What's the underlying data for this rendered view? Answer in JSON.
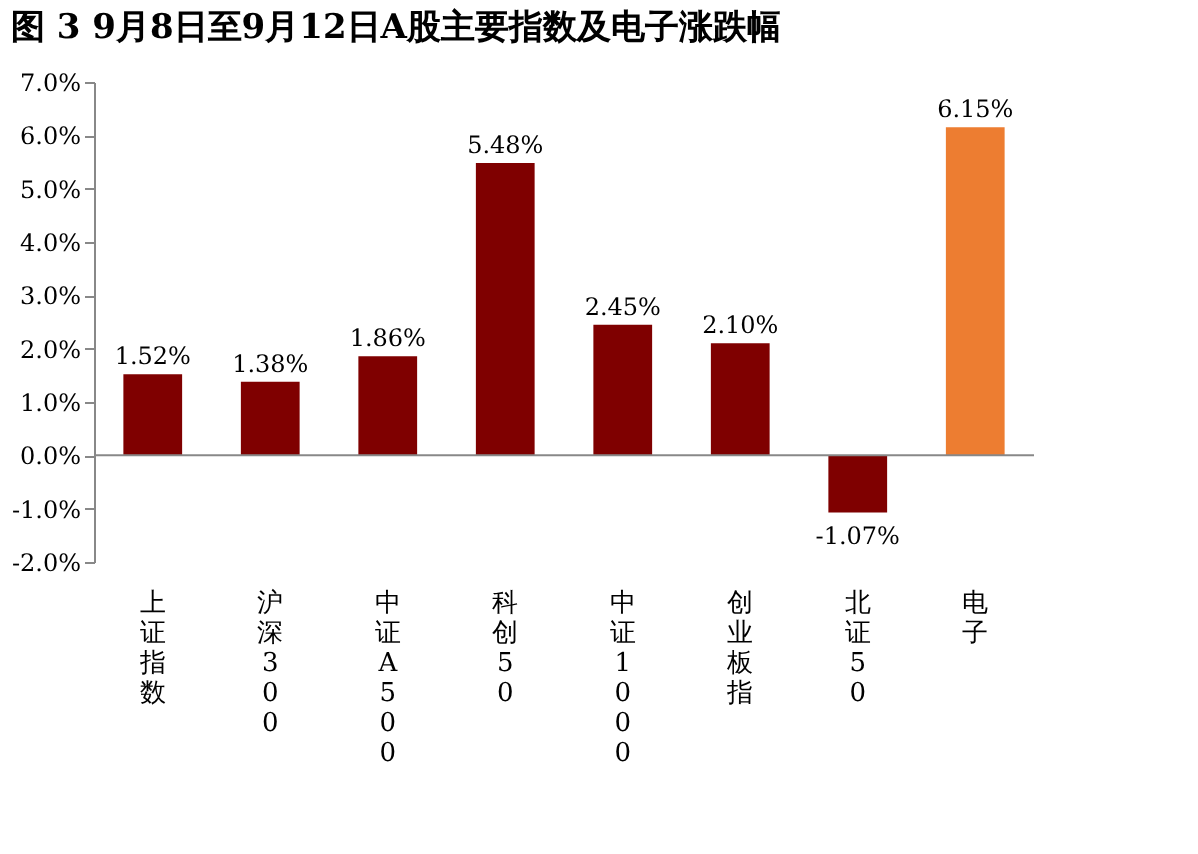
{
  "chart_data": {
    "type": "bar",
    "title": "图 3 9月8日至9月12日A股主要指数及电子涨跌幅",
    "categories": [
      "上证指数",
      "沪深300",
      "中证A500",
      "科创50",
      "中证1000",
      "创业板指",
      "北证50",
      "电子"
    ],
    "values": [
      1.52,
      1.38,
      1.86,
      5.48,
      2.45,
      2.1,
      -1.07,
      6.15
    ],
    "colors": [
      "#7f0000",
      "#7f0000",
      "#7f0000",
      "#7f0000",
      "#7f0000",
      "#7f0000",
      "#7f0000",
      "#ed7d31"
    ],
    "value_labels": [
      "1.52%",
      "1.38%",
      "1.86%",
      "5.48%",
      "2.45%",
      "2.10%",
      "-1.07%",
      "6.15%"
    ],
    "ylim": [
      -2,
      7
    ],
    "yticks": [
      {
        "value": -2,
        "label": "-2.0%"
      },
      {
        "value": -1,
        "label": "-1.0%"
      },
      {
        "value": 0,
        "label": "0.0%"
      },
      {
        "value": 1,
        "label": "1.0%"
      },
      {
        "value": 2,
        "label": "2.0%"
      },
      {
        "value": 3,
        "label": "3.0%"
      },
      {
        "value": 4,
        "label": "4.0%"
      },
      {
        "value": 5,
        "label": "5.0%"
      },
      {
        "value": 6,
        "label": "6.0%"
      },
      {
        "value": 7,
        "label": "7.0%"
      }
    ],
    "ref_lines": [
      {
        "axis": "y",
        "value": 0,
        "color": "#888888"
      }
    ],
    "grid": false
  }
}
